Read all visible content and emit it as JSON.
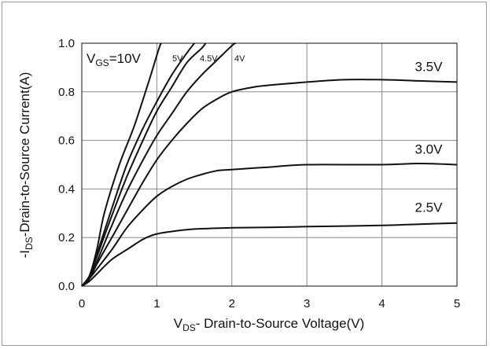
{
  "chart_data": {
    "type": "line",
    "xlabel_main": "V",
    "xlabel_sub": "DS",
    "xlabel_rest": "- Drain-to-Source Voltage(V)",
    "ylabel_pre": "-I",
    "ylabel_sub": "DS",
    "ylabel_rest": "-Drain-to-Source Current(A)",
    "xlim": [
      0,
      5
    ],
    "ylim": [
      0,
      1.0
    ],
    "x_ticks": [
      "0",
      "1",
      "2",
      "3",
      "4",
      "5"
    ],
    "y_ticks": [
      "0.0",
      "0.2",
      "0.4",
      "0.6",
      "0.8",
      "1.0"
    ],
    "grid": true,
    "vgs_label_main": "V",
    "vgs_label_sub": "GS",
    "vgs_label_rest": "=10V",
    "series": [
      {
        "name": "10V",
        "label_style": "none",
        "points": [
          [
            0,
            0
          ],
          [
            0.1,
            0.04
          ],
          [
            0.2,
            0.15
          ],
          [
            0.3,
            0.3
          ],
          [
            0.5,
            0.5
          ],
          [
            0.7,
            0.66
          ],
          [
            0.9,
            0.85
          ],
          [
            1.03,
            0.98
          ],
          [
            1.06,
            1.0
          ]
        ]
      },
      {
        "name": "5V",
        "label_style": "small",
        "points": [
          [
            0,
            0
          ],
          [
            0.1,
            0.04
          ],
          [
            0.2,
            0.13
          ],
          [
            0.4,
            0.32
          ],
          [
            0.6,
            0.5
          ],
          [
            0.8,
            0.64
          ],
          [
            1.0,
            0.76
          ],
          [
            1.2,
            0.87
          ],
          [
            1.4,
            0.96
          ],
          [
            1.5,
            1.0
          ]
        ]
      },
      {
        "name": "4.5V",
        "label_style": "small",
        "points": [
          [
            0,
            0
          ],
          [
            0.1,
            0.04
          ],
          [
            0.2,
            0.12
          ],
          [
            0.4,
            0.29
          ],
          [
            0.6,
            0.45
          ],
          [
            0.8,
            0.59
          ],
          [
            1.0,
            0.72
          ],
          [
            1.2,
            0.82
          ],
          [
            1.4,
            0.92
          ],
          [
            1.6,
            0.98
          ],
          [
            1.65,
            1.0
          ]
        ]
      },
      {
        "name": "4V",
        "label_style": "small",
        "points": [
          [
            0,
            0
          ],
          [
            0.1,
            0.04
          ],
          [
            0.2,
            0.1
          ],
          [
            0.4,
            0.25
          ],
          [
            0.6,
            0.39
          ],
          [
            0.8,
            0.51
          ],
          [
            1.0,
            0.62
          ],
          [
            1.2,
            0.71
          ],
          [
            1.4,
            0.8
          ],
          [
            1.6,
            0.87
          ],
          [
            1.8,
            0.93
          ],
          [
            2.0,
            0.99
          ],
          [
            2.05,
            1.0
          ]
        ]
      },
      {
        "name": "3.5V",
        "label_style": "large",
        "points": [
          [
            0,
            0
          ],
          [
            0.1,
            0.03
          ],
          [
            0.2,
            0.09
          ],
          [
            0.4,
            0.2
          ],
          [
            0.6,
            0.31
          ],
          [
            0.8,
            0.42
          ],
          [
            1.0,
            0.52
          ],
          [
            1.2,
            0.6
          ],
          [
            1.4,
            0.67
          ],
          [
            1.6,
            0.73
          ],
          [
            1.8,
            0.77
          ],
          [
            2.0,
            0.8
          ],
          [
            2.3,
            0.82
          ],
          [
            2.6,
            0.83
          ],
          [
            3.0,
            0.84
          ],
          [
            3.5,
            0.85
          ],
          [
            4.0,
            0.85
          ],
          [
            4.5,
            0.845
          ],
          [
            5.0,
            0.84
          ]
        ]
      },
      {
        "name": "3.0V",
        "label_style": "large",
        "points": [
          [
            0,
            0
          ],
          [
            0.1,
            0.03
          ],
          [
            0.2,
            0.07
          ],
          [
            0.4,
            0.15
          ],
          [
            0.6,
            0.24
          ],
          [
            0.8,
            0.31
          ],
          [
            1.0,
            0.37
          ],
          [
            1.2,
            0.41
          ],
          [
            1.4,
            0.44
          ],
          [
            1.6,
            0.46
          ],
          [
            1.8,
            0.475
          ],
          [
            2.0,
            0.48
          ],
          [
            2.5,
            0.49
          ],
          [
            3.0,
            0.5
          ],
          [
            4.0,
            0.5
          ],
          [
            4.5,
            0.505
          ],
          [
            5.0,
            0.5
          ]
        ]
      },
      {
        "name": "2.5V",
        "label_style": "large",
        "points": [
          [
            0,
            0
          ],
          [
            0.1,
            0.02
          ],
          [
            0.2,
            0.05
          ],
          [
            0.4,
            0.11
          ],
          [
            0.6,
            0.15
          ],
          [
            0.8,
            0.19
          ],
          [
            0.9,
            0.205
          ],
          [
            1.0,
            0.215
          ],
          [
            1.2,
            0.225
          ],
          [
            1.5,
            0.235
          ],
          [
            2.0,
            0.24
          ],
          [
            2.5,
            0.242
          ],
          [
            3.0,
            0.245
          ],
          [
            4.0,
            0.25
          ],
          [
            4.5,
            0.255
          ],
          [
            5.0,
            0.26
          ]
        ]
      }
    ]
  }
}
